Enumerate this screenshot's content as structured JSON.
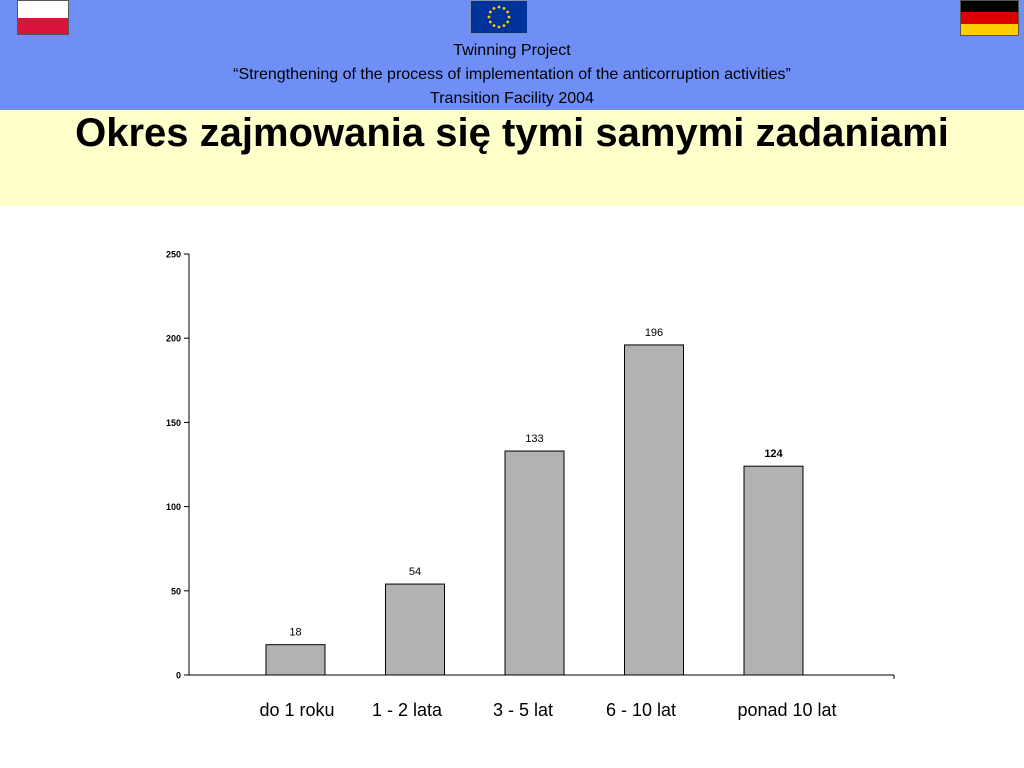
{
  "header": {
    "line1": "Twinning Project",
    "line2": "“Strengthening of the process of implementation of the anticorruption activities”",
    "line3": "Transition Facility 2004"
  },
  "flags": {
    "left": "poland-flag-icon",
    "center": "eu-flag-icon",
    "right": "germany-flag-icon"
  },
  "slide": {
    "title": "Okres zajmowania się tymi samymi zadaniami"
  },
  "colors": {
    "header_bg": "#6f8ff7",
    "title_band_bg": "#ffffcc",
    "bar_fill": "#b2b2b2",
    "eu_blue": "#003399",
    "eu_star": "#ffcc00"
  },
  "chart_data": {
    "type": "bar",
    "title": "",
    "xlabel": "",
    "ylabel": "",
    "categories": [
      "do 1 roku",
      "1 - 2 lata",
      "3 - 5 lat",
      "6 - 10 lat",
      "ponad 10 lat"
    ],
    "values": [
      18,
      54,
      133,
      196,
      124
    ],
    "data_labels": [
      "18",
      "54",
      "133",
      "196",
      "124"
    ],
    "ylim": [
      0,
      250
    ],
    "yticks": [
      0,
      50,
      100,
      150,
      200,
      250
    ],
    "grid": false,
    "legend": "none"
  }
}
